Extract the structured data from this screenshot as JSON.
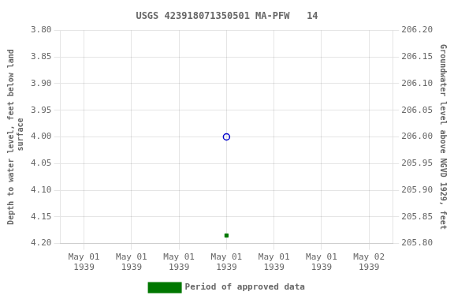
{
  "chart_data": {
    "type": "scatter",
    "title": "USGS 423918071350501 MA-PFW   14",
    "categories": [
      "May 01\n1939",
      "May 01\n1939",
      "May 01\n1939",
      "May 01\n1939",
      "May 01\n1939",
      "May 01\n1939",
      "May 02\n1939"
    ],
    "ylabel": "Depth to water level, feet below land\n surface",
    "y2label": "Groundwater level above NGVD 1929, feet",
    "ylim": [
      4.2,
      3.8
    ],
    "yticks": [
      {
        "value": 3.8,
        "label": "3.80"
      },
      3.85,
      {
        "value": 3.9,
        "label": "3.90"
      },
      3.95,
      {
        "value": 4.0,
        "label": "4.00"
      },
      4.05,
      {
        "value": 4.1,
        "label": "4.10"
      },
      4.15,
      {
        "value": 4.2,
        "label": "4.20"
      }
    ],
    "y2lim": [
      205.8,
      206.2
    ],
    "y2ticks": [
      {
        "value": 205.8,
        "label": "205.80"
      },
      205.85,
      {
        "value": 205.9,
        "label": "205.90"
      },
      205.95,
      {
        "value": 206.0,
        "label": "206.00"
      },
      206.05,
      {
        "value": 206.1,
        "label": "206.10"
      },
      206.15,
      {
        "value": 206.2,
        "label": "206.20"
      }
    ],
    "grid": true,
    "legend": "bottom",
    "series": [
      {
        "color": "#0000cc",
        "marker": "open_circle",
        "values": [
          null,
          null,
          null,
          4.0,
          null,
          null,
          null
        ]
      },
      {
        "name": "Period of approved data",
        "color": "#007700",
        "marker": "square",
        "values": [
          null,
          null,
          null,
          4.185,
          null,
          null,
          null
        ]
      }
    ]
  }
}
